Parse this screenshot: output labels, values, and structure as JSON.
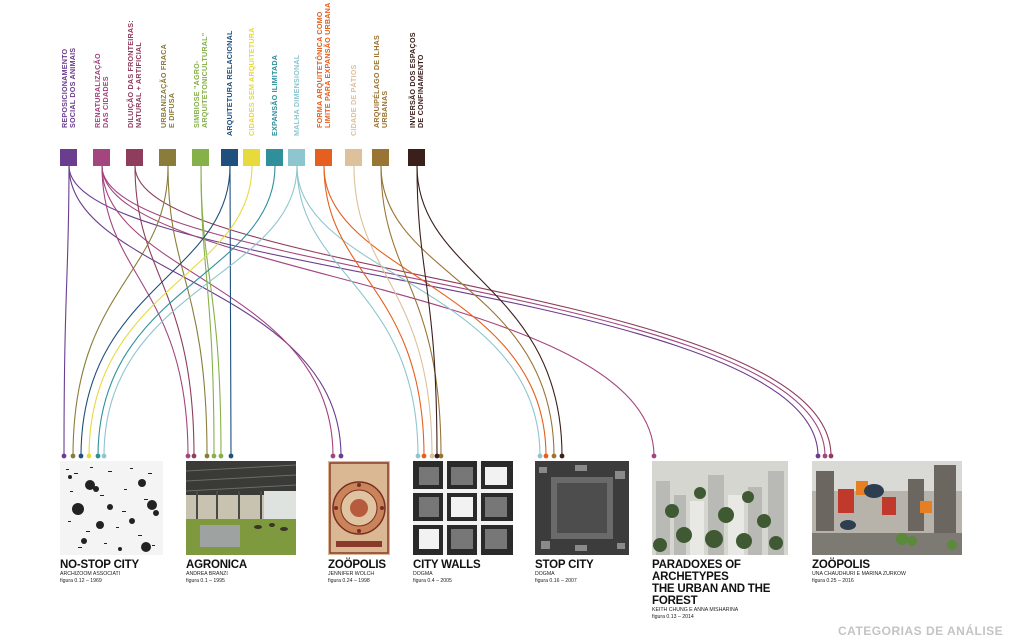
{
  "categories": [
    {
      "label_lines": [
        "REPOSICIONAMENTO",
        "SOCIAL DOS ANIMAIS"
      ],
      "color": "#6a3d8f"
    },
    {
      "label_lines": [
        "RENATURALIZAÇÃO",
        "DAS CIDADES"
      ],
      "color": "#a3457e"
    },
    {
      "label_lines": [
        "DILUIÇÃO DAS FRONTEIRAS:",
        "NATURAL + ARTIFICIAL"
      ],
      "color": "#8e3d5c"
    },
    {
      "label_lines": [
        "URBANIZAÇÃO FRACA",
        "E DIFUSA"
      ],
      "color": "#8a7c3a"
    },
    {
      "label_lines": [
        "SIMBIOSE \"AGRO-",
        "ARQUITETONICULTURAL\""
      ],
      "color": "#86b04a"
    },
    {
      "label_lines": [
        "ARQUITETURA RELACIONAL"
      ],
      "color": "#1f4f7c"
    },
    {
      "label_lines": [
        "CIDADES SEM ARQUITETURA"
      ],
      "color": "#e6da3c"
    },
    {
      "label_lines": [
        "EXPANSÃO ILIMITADA"
      ],
      "color": "#2f8f9a"
    },
    {
      "label_lines": [
        "MALHA DIMENSIONAL"
      ],
      "color": "#8ec6cf"
    },
    {
      "label_lines": [
        "FORMA ARQUITETÔNICA COMO",
        "LIMITE PARA EXPANSÃO URBANA"
      ],
      "color": "#e5601e"
    },
    {
      "label_lines": [
        "CIDADE DE PÁTIOS"
      ],
      "color": "#dcc19a"
    },
    {
      "label_lines": [
        "ARQUIPÉLAGO DE ILHAS",
        "URBANAS"
      ],
      "color": "#9a7434"
    },
    {
      "label_lines": [
        "INVERSÃO DOS ESPAÇOS",
        "DE CONFINAMENTO"
      ],
      "color": "#3a1f1a"
    }
  ],
  "projects": [
    {
      "title_lines": [
        "NO-STOP CITY"
      ],
      "author": "ARCHIZOOM ASSOCIATI",
      "figure": "figura 0.12 – 1969"
    },
    {
      "title_lines": [
        "AGRONICA"
      ],
      "author": "ANDREA BRANZI",
      "figure": "figura 0.1 – 1995"
    },
    {
      "title_lines": [
        "ZOÖPOLIS"
      ],
      "author": "JENNIFER WOLCH",
      "figure": "figura 0.24 – 1998"
    },
    {
      "title_lines": [
        "CITY WALLS"
      ],
      "author": "DOGMA",
      "figure": "figura 0.4 – 2005"
    },
    {
      "title_lines": [
        "STOP CITY"
      ],
      "author": "DOGMA",
      "figure": "figura 0.16 – 2007"
    },
    {
      "title_lines": [
        "PARADOXES OF ARCHETYPES",
        "THE URBAN AND THE FOREST"
      ],
      "author": "KEITH CHUNG E ANNA MISHARINA",
      "figure": "figura 0.13 – 2014"
    },
    {
      "title_lines": [
        "ZOÖPOLIS"
      ],
      "author": "UNA CHAUDHURI E MARINA ZURKOW",
      "figure": "figura 0.25 – 2016"
    }
  ],
  "footer_label": "CATEGORIAS DE ANÁLISE"
}
